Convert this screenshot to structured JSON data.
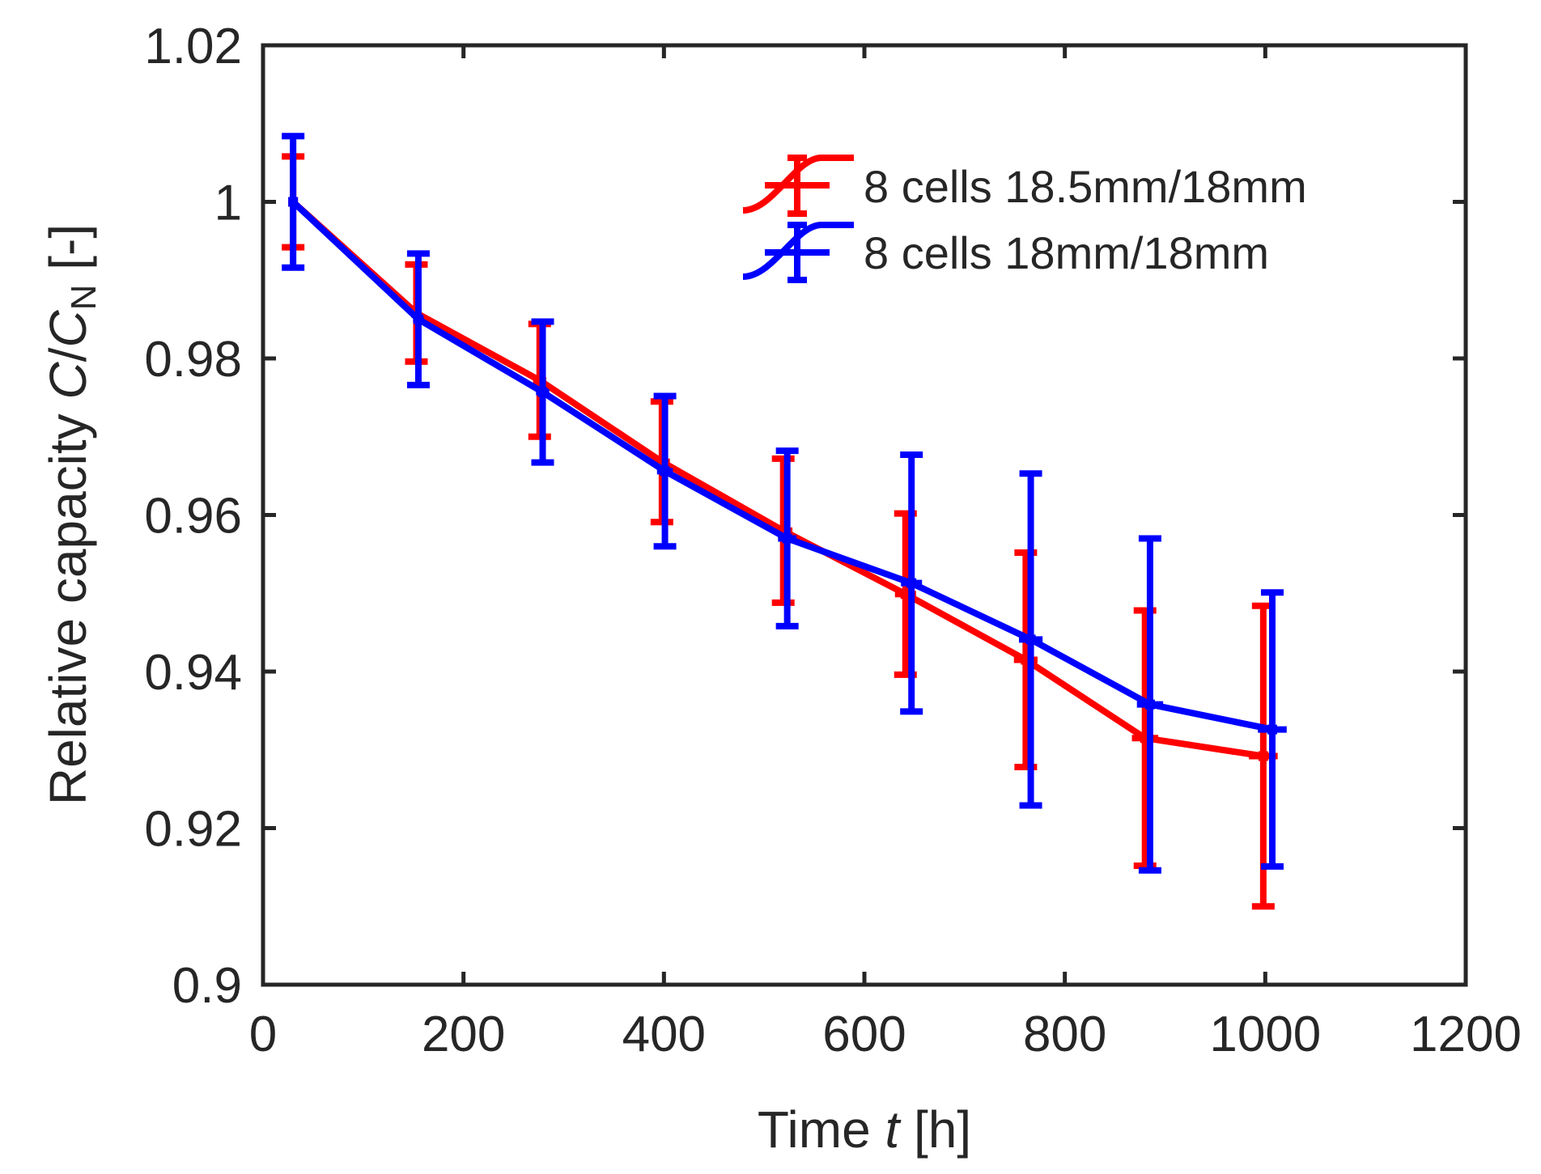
{
  "chart_data": {
    "type": "line",
    "title": "",
    "xlabel": {
      "prefix": "Time ",
      "var": "t",
      "suffix": " [h]"
    },
    "ylabel": {
      "prefix": "Relative capacity ",
      "var1": "C",
      "slash": "/",
      "var2": "C",
      "sub": "N",
      "suffix": " [-]"
    },
    "xlim": [
      0,
      1200
    ],
    "ylim": [
      0.9,
      1.02
    ],
    "xticks": [
      0,
      200,
      400,
      600,
      800,
      1000,
      1200
    ],
    "xtick_labels": [
      "0",
      "200",
      "400",
      "600",
      "800",
      "1000",
      "1200"
    ],
    "yticks": [
      0.9,
      0.92,
      0.94,
      0.96,
      0.98,
      1.0,
      1.02
    ],
    "ytick_labels": [
      "0.9",
      "0.92",
      "0.94",
      "0.96",
      "0.98",
      "1",
      "1.02"
    ],
    "grid": false,
    "legend_position": "top-right",
    "series": [
      {
        "name": "8 cells 18.5mm/18mm",
        "color": "#ff0000",
        "x": [
          30,
          153,
          276,
          398,
          519,
          641,
          761,
          880,
          998
        ],
        "y": [
          1.0,
          0.9858,
          0.9772,
          0.9668,
          0.958,
          0.9499,
          0.9415,
          0.9315,
          0.9292
        ],
        "err": [
          0.0058,
          0.0062,
          0.0072,
          0.0077,
          0.0092,
          0.0103,
          0.0137,
          0.0163,
          0.0192
        ]
      },
      {
        "name": "8 cells 18mm/18mm",
        "color": "#0000ff",
        "x": [
          30,
          155,
          279,
          401,
          523,
          647,
          766,
          885,
          1007
        ],
        "y": [
          1.0,
          0.985,
          0.9757,
          0.9656,
          0.957,
          0.9513,
          0.9441,
          0.9358,
          0.9326
        ],
        "err": [
          0.0084,
          0.0084,
          0.009,
          0.0096,
          0.0112,
          0.0164,
          0.0212,
          0.0212,
          0.0175
        ]
      }
    ]
  }
}
